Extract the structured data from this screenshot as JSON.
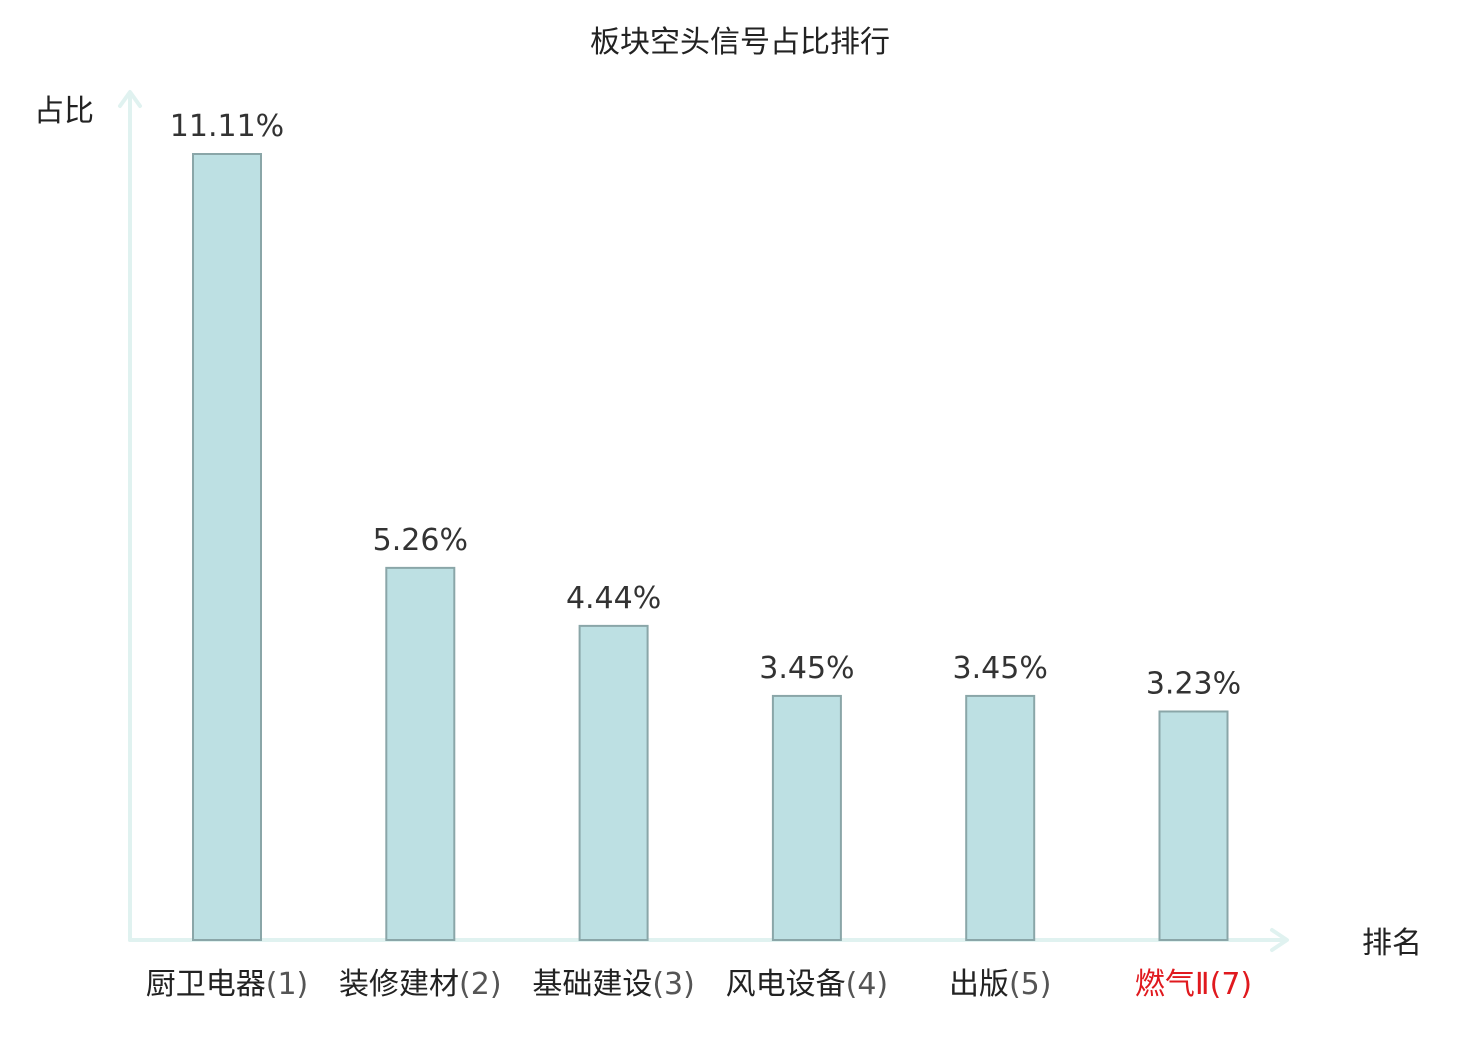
{
  "chart_data": {
    "type": "bar",
    "title": "板块空头信号占比排行",
    "ylabel": "占比",
    "xlabel": "排名",
    "categories": [
      {
        "name": "厨卫电器",
        "rank": "(1)",
        "highlight": false
      },
      {
        "name": "装修建材",
        "rank": "(2)",
        "highlight": false
      },
      {
        "name": "基础建设",
        "rank": "(3)",
        "highlight": false
      },
      {
        "name": "风电设备",
        "rank": "(4)",
        "highlight": false
      },
      {
        "name": "出版",
        "rank": "(5)",
        "highlight": false
      },
      {
        "name": "燃气Ⅱ",
        "rank": "(7)",
        "highlight": true
      }
    ],
    "values": [
      11.11,
      5.26,
      4.44,
      3.45,
      3.45,
      3.23
    ],
    "value_labels": [
      "11.11%",
      "5.26%",
      "4.44%",
      "3.45%",
      "3.45%",
      "3.23%"
    ],
    "ylim": [
      0,
      11.11
    ],
    "grid": false,
    "colors": {
      "bar_fill": "#bde0e3",
      "bar_stroke": "#8aa6a8",
      "axis": "#e0f2f0",
      "text": "#333333",
      "category_name": "#222222",
      "category_rank": "#555555",
      "highlight": "#e0191e"
    }
  }
}
